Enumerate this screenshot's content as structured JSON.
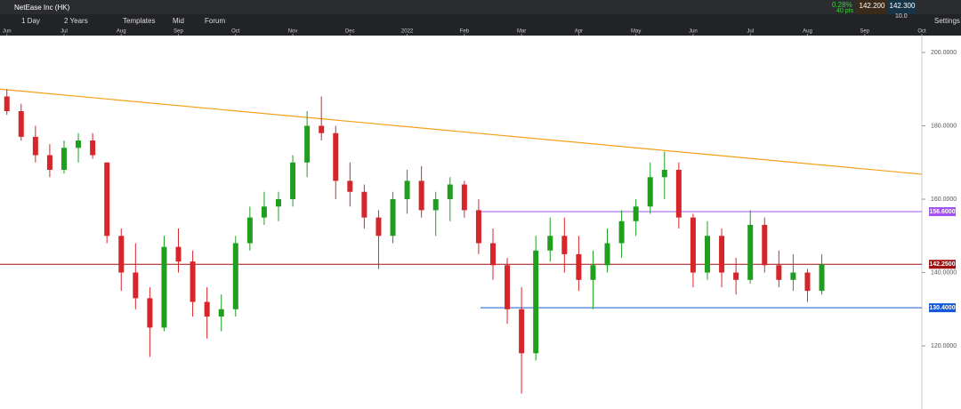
{
  "header": {
    "instrument": "NetEase Inc (HK)",
    "interval": "1 Day",
    "range": "2 Years",
    "templates": "Templates",
    "price_type": "Mid",
    "forum": "Forum",
    "change_pct": "0.28%",
    "change_pts": "40 pts",
    "bid": "142.200",
    "ask": "142.300",
    "spread": "10.0",
    "settings": "Settings"
  },
  "chart_data": {
    "type": "candlestick",
    "x": [
      0,
      0.25,
      0.5,
      0.75,
      1,
      1.25,
      1.5,
      1.75,
      2,
      2.25,
      2.5,
      2.75,
      3,
      3.25,
      3.5,
      3.75,
      4,
      4.25,
      4.5,
      4.75,
      5,
      5.25,
      5.5,
      5.75,
      6,
      6.25,
      6.5,
      6.75,
      7,
      7.25,
      7.5,
      7.75,
      8,
      8.25,
      8.5,
      8.75,
      9,
      9.25,
      9.5,
      9.75,
      10,
      10.25,
      10.5,
      10.75,
      11,
      11.25,
      11.5,
      11.75,
      12,
      12.25,
      12.5,
      12.75,
      13,
      13.25,
      13.5,
      13.75,
      14,
      14.25
    ],
    "open": [
      188,
      184,
      177,
      172,
      168,
      174,
      176,
      170,
      150,
      140,
      133,
      125,
      147,
      143,
      132,
      128,
      130,
      148,
      155,
      158,
      160,
      170,
      180,
      178,
      165,
      162,
      155,
      150,
      160,
      165,
      157,
      160,
      164,
      157,
      148,
      142,
      130,
      118,
      146,
      150,
      145,
      138,
      142,
      148,
      154,
      158,
      166,
      168,
      155,
      140,
      150,
      140,
      138,
      153,
      142,
      138,
      140,
      135
    ],
    "high": [
      190,
      186,
      180,
      175,
      176,
      178,
      178,
      170,
      152,
      148,
      136,
      150,
      152,
      146,
      136,
      134,
      150,
      158,
      162,
      162,
      172,
      184,
      188,
      180,
      170,
      164,
      157,
      162,
      168,
      169,
      162,
      166,
      165,
      160,
      152,
      144,
      136,
      150,
      155,
      155,
      150,
      146,
      152,
      157,
      160,
      170,
      173,
      170,
      156,
      154,
      152,
      144,
      157,
      155,
      146,
      145,
      141,
      145
    ],
    "low": [
      183,
      176,
      170,
      166,
      167,
      170,
      171,
      148,
      135,
      130,
      117,
      124,
      140,
      128,
      122,
      124,
      128,
      146,
      153,
      154,
      158,
      166,
      176,
      160,
      158,
      152,
      141,
      148,
      156,
      155,
      150,
      154,
      155,
      145,
      138,
      126,
      107,
      116,
      143,
      140,
      135,
      130,
      140,
      144,
      150,
      156,
      160,
      152,
      136,
      138,
      136,
      134,
      137,
      140,
      136,
      135,
      132,
      134
    ],
    "close": [
      184,
      177,
      172,
      168,
      174,
      176,
      172,
      150,
      140,
      133,
      125,
      147,
      143,
      132,
      128,
      130,
      148,
      155,
      158,
      160,
      170,
      180,
      178,
      165,
      162,
      155,
      150,
      160,
      165,
      157,
      160,
      164,
      157,
      148,
      142,
      130,
      118,
      146,
      150,
      145,
      138,
      142,
      148,
      154,
      158,
      166,
      168,
      155,
      140,
      150,
      140,
      138,
      153,
      142,
      138,
      140,
      135,
      142.25
    ],
    "up_color": "#1f9e1f",
    "down_color": "#d6262b",
    "xlim": [
      -0.12,
      16
    ],
    "ylim": [
      102.8,
      206.3
    ],
    "xticks": [
      {
        "value": 0,
        "label": "Jun"
      },
      {
        "value": 1,
        "label": "Jul"
      },
      {
        "value": 2,
        "label": "Aug"
      },
      {
        "value": 3,
        "label": "Sep"
      },
      {
        "value": 4,
        "label": "Oct"
      },
      {
        "value": 5,
        "label": "Nov"
      },
      {
        "value": 6,
        "label": "Dec"
      },
      {
        "value": 7,
        "label": "2022"
      },
      {
        "value": 8,
        "label": "Feb"
      },
      {
        "value": 9,
        "label": "Mar"
      },
      {
        "value": 10,
        "label": "Apr"
      },
      {
        "value": 11,
        "label": "May"
      },
      {
        "value": 12,
        "label": "Jun"
      },
      {
        "value": 13,
        "label": "Jul"
      },
      {
        "value": 14,
        "label": "Aug"
      },
      {
        "value": 15,
        "label": "Sep"
      },
      {
        "value": 16,
        "label": "Oct"
      }
    ],
    "yticks": [
      {
        "value": 120,
        "label": "120.0000"
      },
      {
        "value": 140,
        "label": "140.0000"
      },
      {
        "value": 160,
        "label": "160.0000"
      },
      {
        "value": 180,
        "label": "180.0000"
      },
      {
        "value": 200,
        "label": "200.0000"
      }
    ],
    "trendline": {
      "start": 190,
      "end": 166.8,
      "color": "#f5a01a"
    },
    "levels": [
      {
        "value": 156.6,
        "label": "156.6000",
        "color": "#a450f0"
      },
      {
        "value": 142.25,
        "label": "142.2500",
        "color": "#a01010"
      },
      {
        "value": 130.4,
        "label": "130.4000",
        "color": "#1457d8"
      }
    ]
  }
}
